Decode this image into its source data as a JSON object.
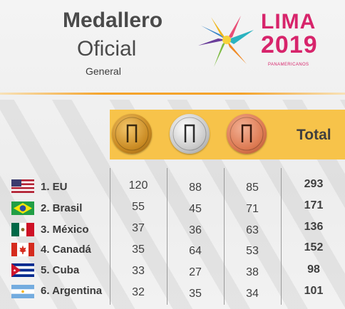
{
  "header": {
    "title_line1": "Medallero",
    "title_line2": "Oficial",
    "subtitle": "General"
  },
  "logo": {
    "word": "LIMA",
    "year": "2019",
    "tagline": "PANAMERICANOS"
  },
  "table": {
    "total_header": "Total",
    "medals": [
      "gold-medal",
      "silver-medal",
      "bronze-medal"
    ],
    "rows": [
      {
        "country": "1. EU",
        "flag": "flag-usa-icon",
        "gold": "120",
        "silver": "88",
        "bronze": "85",
        "total": "293"
      },
      {
        "country": "2. Brasil",
        "flag": "flag-brazil-icon",
        "gold": "55",
        "silver": "45",
        "bronze": "71",
        "total": "171"
      },
      {
        "country": "3. México",
        "flag": "flag-mexico-icon",
        "gold": "37",
        "silver": "36",
        "bronze": "63",
        "total": "136"
      },
      {
        "country": "4. Canadá",
        "flag": "flag-canada-icon",
        "gold": "35",
        "silver": "64",
        "bronze": "53",
        "total": "152"
      },
      {
        "country": "5. Cuba",
        "flag": "flag-cuba-icon",
        "gold": "33",
        "silver": "27",
        "bronze": "38",
        "total": "98"
      },
      {
        "country": "6. Argentina",
        "flag": "flag-argentina-icon",
        "gold": "32",
        "silver": "35",
        "bronze": "34",
        "total": "101"
      }
    ]
  },
  "colors": {
    "accent_orange": "#f4a32a",
    "band_yellow": "#f7c34a",
    "logo_magenta": "#d7246b",
    "text_gray": "#3f3f3f"
  }
}
